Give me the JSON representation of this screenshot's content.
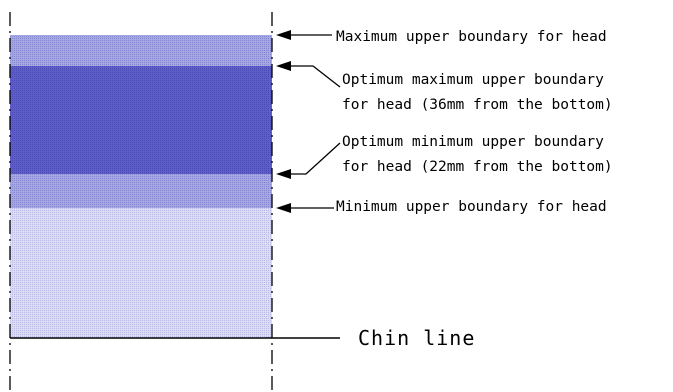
{
  "labels": {
    "max_upper": "Maximum upper boundary for head",
    "opt_max_line1": "Optimum maximum upper boundary",
    "opt_max_line2": "for head (36mm from the bottom)",
    "opt_min_line1": "Optimum minimum upper boundary",
    "opt_min_line2": "for head (22mm from the bottom)",
    "min_upper": "Minimum upper boundary for head",
    "chin_line": "Chin line"
  },
  "colors": {
    "outer_band": "#9d9fdc",
    "optimum_band": "#5858c2",
    "lower_area": "#d4d5f0",
    "line": "#000000"
  }
}
